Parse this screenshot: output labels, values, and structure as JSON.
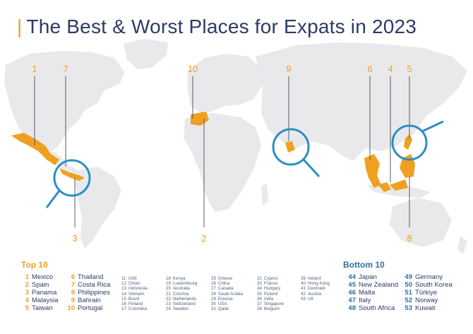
{
  "title": "The Best & Worst Places for Expats in 2023",
  "colors": {
    "accent": "#f0a020",
    "land": "#e9e9ec",
    "title": "#2f3a66",
    "bottom_blue": "#2f6f9f",
    "magnifier": "#2b8fc0"
  },
  "callout_numbers": [
    "1",
    "7",
    "10",
    "9",
    "6",
    "4",
    "5",
    "3",
    "2",
    "8"
  ],
  "top10": {
    "heading": "Top 10",
    "col1": [
      {
        "rank": "1",
        "country": "Mexico"
      },
      {
        "rank": "2",
        "country": "Spain"
      },
      {
        "rank": "3",
        "country": "Panama"
      },
      {
        "rank": "4",
        "country": "Malaysia"
      },
      {
        "rank": "5",
        "country": "Taiwan"
      }
    ],
    "col2": [
      {
        "rank": "6",
        "country": "Thailand"
      },
      {
        "rank": "7",
        "country": "Costa Rica"
      },
      {
        "rank": "8",
        "country": "Philippines"
      },
      {
        "rank": "9",
        "country": "Bahrain"
      },
      {
        "rank": "10",
        "country": "Portugal"
      }
    ]
  },
  "middle": [
    [
      {
        "rank": "11",
        "country": "UAE"
      },
      {
        "rank": "12",
        "country": "Oman"
      },
      {
        "rank": "13",
        "country": "Indonesia"
      },
      {
        "rank": "14",
        "country": "Vietnam"
      },
      {
        "rank": "15",
        "country": "Brazil"
      },
      {
        "rank": "16",
        "country": "Finland"
      },
      {
        "rank": "17",
        "country": "Colombia"
      }
    ],
    [
      {
        "rank": "18",
        "country": "Kenya"
      },
      {
        "rank": "19",
        "country": "Luxembourg"
      },
      {
        "rank": "20",
        "country": "Australia"
      },
      {
        "rank": "21",
        "country": "Czechia"
      },
      {
        "rank": "22",
        "country": "Netherlands"
      },
      {
        "rank": "23",
        "country": "Switzerland"
      },
      {
        "rank": "24",
        "country": "Sweden"
      }
    ],
    [
      {
        "rank": "25",
        "country": "Greece"
      },
      {
        "rank": "26",
        "country": "China"
      },
      {
        "rank": "27",
        "country": "Canada"
      },
      {
        "rank": "28",
        "country": "Saudi Arabia"
      },
      {
        "rank": "29",
        "country": "Estonia"
      },
      {
        "rank": "30",
        "country": "USA"
      },
      {
        "rank": "31",
        "country": "Qatar"
      }
    ],
    [
      {
        "rank": "32",
        "country": "Cyprus"
      },
      {
        "rank": "33",
        "country": "France"
      },
      {
        "rank": "34",
        "country": "Hungary"
      },
      {
        "rank": "35",
        "country": "Poland"
      },
      {
        "rank": "36",
        "country": "India"
      },
      {
        "rank": "37",
        "country": "Singapore"
      },
      {
        "rank": "38",
        "country": "Belgium"
      }
    ],
    [
      {
        "rank": "39",
        "country": "Ireland"
      },
      {
        "rank": "40",
        "country": "Hong Kong"
      },
      {
        "rank": "41",
        "country": "Denmark"
      },
      {
        "rank": "42",
        "country": "Austria"
      },
      {
        "rank": "43",
        "country": "UK"
      }
    ]
  ],
  "bottom10": {
    "heading": "Bottom 10",
    "col1": [
      {
        "rank": "44",
        "country": "Japan"
      },
      {
        "rank": "45",
        "country": "New Zealand"
      },
      {
        "rank": "46",
        "country": "Malta"
      },
      {
        "rank": "47",
        "country": "Italy"
      },
      {
        "rank": "48",
        "country": "South Africa"
      }
    ],
    "col2": [
      {
        "rank": "49",
        "country": "Germany"
      },
      {
        "rank": "50",
        "country": "South Korea"
      },
      {
        "rank": "51",
        "country": "Türkiye"
      },
      {
        "rank": "52",
        "country": "Norway"
      },
      {
        "rank": "53",
        "country": "Kuwait"
      }
    ]
  }
}
